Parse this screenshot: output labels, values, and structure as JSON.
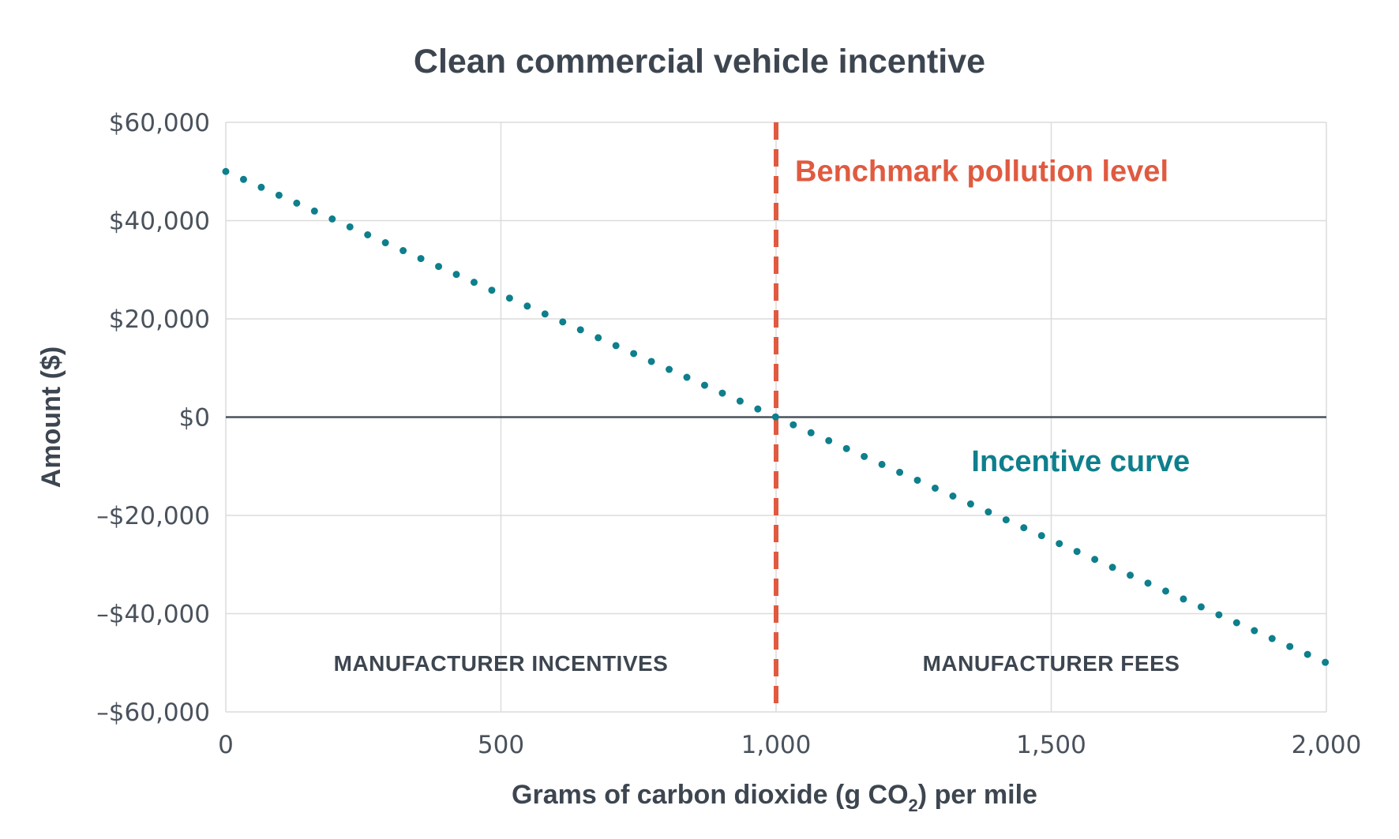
{
  "colors": {
    "curve": "#0e7f8c",
    "benchmark": "#e05a40",
    "grid": "#dcdcdc",
    "zero_line": "#4a525c",
    "text": "#3d4650"
  },
  "chart_data": {
    "type": "line",
    "title": "Clean commercial vehicle incentive",
    "xlabel_main": "Grams of carbon dioxide (g CO",
    "xlabel_sub": "2",
    "xlabel_tail": ") per mile",
    "ylabel": "Amount ($)",
    "xlim": [
      0,
      2000
    ],
    "ylim": [
      -60000,
      60000
    ],
    "x_ticks": [
      0,
      500,
      1000,
      1500,
      2000
    ],
    "x_tick_labels": [
      "0",
      "500",
      "1,000",
      "1,500",
      "2,000"
    ],
    "y_ticks": [
      60000,
      40000,
      20000,
      0,
      -20000,
      -40000,
      -60000
    ],
    "y_tick_labels": [
      "$60,000",
      "$40,000",
      "$20,000",
      "$0",
      "–$20,000",
      "–$40,000",
      "–$60,000"
    ],
    "grid": true,
    "series": [
      {
        "x": [
          0,
          2000
        ],
        "y": [
          50000,
          -50000
        ],
        "style": "dotted"
      }
    ],
    "benchmark": {
      "x": 1000,
      "label": "Benchmark pollution level"
    },
    "annotations": {
      "curve_label": "Incentive curve",
      "left_region": "MANUFACTURER INCENTIVES",
      "right_region": "MANUFACTURER FEES"
    }
  }
}
